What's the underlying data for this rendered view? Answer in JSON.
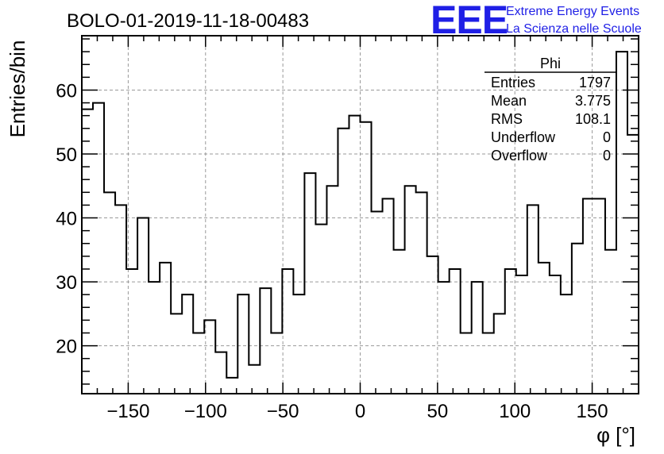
{
  "header": {
    "run_title": "BOLO-01-2019-11-18-00483",
    "logo_text": "EEE",
    "logo_line1": "Extreme Energy Events",
    "logo_line2": "La Scienza nelle Scuole",
    "brand_color": "#1f1fe6"
  },
  "stats": {
    "name": "Phi",
    "rows": [
      {
        "label": "Entries",
        "value": "1797"
      },
      {
        "label": "Mean",
        "value": "3.775"
      },
      {
        "label": "RMS",
        "value": "108.1"
      },
      {
        "label": "Underflow",
        "value": "0"
      },
      {
        "label": "Overflow",
        "value": "0"
      }
    ]
  },
  "chart_data": {
    "type": "histogram",
    "title": "BOLO-01-2019-11-18-00483",
    "xlabel": "φ [°]",
    "ylabel": "Entries/bin",
    "xlim": [
      -180,
      180
    ],
    "ylim": [
      12.5,
      68.5
    ],
    "bin_width": 7.2,
    "bin_edges_start": -180,
    "values": [
      57,
      58,
      44,
      42,
      32,
      40,
      30,
      33,
      25,
      28,
      22,
      24,
      19,
      15,
      28,
      17,
      29,
      22,
      32,
      28,
      47,
      39,
      45,
      54,
      56,
      55,
      41,
      43,
      35,
      45,
      44,
      34,
      30,
      32,
      22,
      30,
      22,
      25,
      32,
      31,
      42,
      33,
      31,
      28,
      36,
      43,
      43,
      35,
      66,
      53
    ],
    "x_ticks": [
      -150,
      -100,
      -50,
      0,
      50,
      100,
      150
    ],
    "x_tick_labels": [
      "−150",
      "−100",
      "−50",
      "0",
      "50",
      "100",
      "150"
    ],
    "y_ticks": [
      20,
      30,
      40,
      50,
      60
    ],
    "y_tick_labels": [
      "20",
      "30",
      "40",
      "50",
      "60"
    ],
    "grid": true,
    "line_color": "#000000"
  }
}
